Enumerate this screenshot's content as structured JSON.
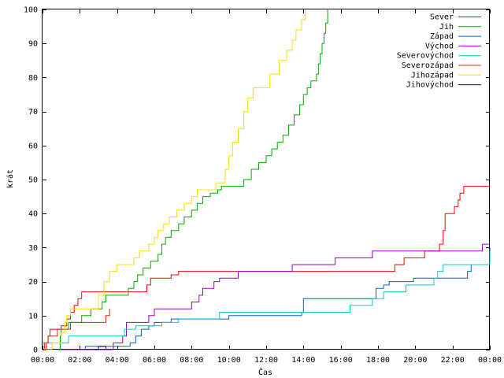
{
  "chart_data": {
    "type": "line",
    "xlabel": "Čas",
    "ylabel": "krát",
    "xlim": [
      0,
      24
    ],
    "ylim": [
      0,
      100
    ],
    "xticks": [
      {
        "v": 0,
        "label": "00:00"
      },
      {
        "v": 2,
        "label": "02:00"
      },
      {
        "v": 4,
        "label": "04:00"
      },
      {
        "v": 6,
        "label": "06:00"
      },
      {
        "v": 8,
        "label": "08:00"
      },
      {
        "v": 10,
        "label": "10:00"
      },
      {
        "v": 12,
        "label": "12:00"
      },
      {
        "v": 14,
        "label": "14:00"
      },
      {
        "v": 16,
        "label": "16:00"
      },
      {
        "v": 18,
        "label": "18:00"
      },
      {
        "v": 20,
        "label": "20:00"
      },
      {
        "v": 22,
        "label": "22:00"
      },
      {
        "v": 24,
        "label": "00:00"
      }
    ],
    "yticks": [
      0,
      10,
      20,
      30,
      40,
      50,
      60,
      70,
      80,
      90,
      100
    ],
    "grid": false,
    "legend_position": "top-right",
    "series": [
      {
        "name": "Sever",
        "color": "#ff0000",
        "points": [
          [
            0.05,
            0
          ],
          [
            0.2,
            2
          ],
          [
            0.3,
            4
          ],
          [
            0.4,
            6
          ],
          [
            0.9,
            6
          ],
          [
            1.0,
            7
          ],
          [
            1.3,
            9
          ],
          [
            1.5,
            11
          ],
          [
            1.7,
            13
          ],
          [
            1.9,
            15
          ],
          [
            2.1,
            17
          ],
          [
            2.6,
            17
          ],
          [
            3.2,
            17
          ],
          [
            5.5,
            17
          ],
          [
            5.6,
            19
          ],
          [
            5.8,
            21
          ],
          [
            6.8,
            21
          ],
          [
            6.9,
            22
          ],
          [
            7.3,
            23
          ],
          [
            12.0,
            23
          ],
          [
            18.8,
            23
          ],
          [
            18.9,
            25
          ],
          [
            19.3,
            25
          ],
          [
            19.4,
            27
          ],
          [
            20.4,
            27
          ],
          [
            20.5,
            29
          ],
          [
            21.2,
            29
          ],
          [
            21.3,
            31
          ],
          [
            21.5,
            35
          ],
          [
            21.6,
            40
          ],
          [
            22.0,
            40
          ],
          [
            22.1,
            42
          ],
          [
            22.3,
            44
          ],
          [
            22.4,
            46
          ],
          [
            22.6,
            48
          ],
          [
            24,
            48
          ]
        ]
      },
      {
        "name": "Jih",
        "color": "#00aa00",
        "points": [
          [
            0.85,
            0
          ],
          [
            0.95,
            4
          ],
          [
            1.0,
            6
          ],
          [
            1.4,
            8
          ],
          [
            2.0,
            8
          ],
          [
            2.1,
            10
          ],
          [
            2.6,
            12
          ],
          [
            3.2,
            14
          ],
          [
            3.4,
            16
          ],
          [
            4.5,
            16
          ],
          [
            4.6,
            18
          ],
          [
            4.9,
            20
          ],
          [
            5.1,
            22
          ],
          [
            5.4,
            24
          ],
          [
            5.8,
            26
          ],
          [
            6.2,
            28
          ],
          [
            6.4,
            31
          ],
          [
            6.6,
            33
          ],
          [
            6.9,
            35
          ],
          [
            7.3,
            37
          ],
          [
            7.6,
            39
          ],
          [
            8.0,
            41
          ],
          [
            8.3,
            43
          ],
          [
            8.6,
            45
          ],
          [
            9.0,
            46
          ],
          [
            9.4,
            47
          ],
          [
            9.6,
            48
          ],
          [
            10.6,
            48
          ],
          [
            10.8,
            50
          ],
          [
            11.2,
            53
          ],
          [
            11.6,
            55
          ],
          [
            12.0,
            57
          ],
          [
            12.3,
            59
          ],
          [
            12.6,
            61
          ],
          [
            12.9,
            63
          ],
          [
            13.2,
            66
          ],
          [
            13.5,
            69
          ],
          [
            13.8,
            72
          ],
          [
            14.0,
            75
          ],
          [
            14.2,
            77
          ],
          [
            14.4,
            79
          ],
          [
            14.7,
            81
          ],
          [
            14.8,
            84
          ],
          [
            14.9,
            87
          ],
          [
            15.0,
            90
          ],
          [
            15.1,
            93
          ],
          [
            15.2,
            96
          ],
          [
            15.3,
            100
          ]
        ]
      },
      {
        "name": "Západ",
        "color": "#0066cc",
        "points": [
          [
            2.2,
            0
          ],
          [
            2.3,
            1
          ],
          [
            4.7,
            2
          ],
          [
            5.0,
            4
          ],
          [
            5.3,
            6
          ],
          [
            5.6,
            6
          ],
          [
            5.7,
            7
          ],
          [
            6.0,
            8
          ],
          [
            6.5,
            8
          ],
          [
            6.9,
            9
          ],
          [
            7.6,
            9
          ],
          [
            10.0,
            10
          ],
          [
            11.2,
            10
          ],
          [
            11.4,
            10
          ],
          [
            13.9,
            11
          ],
          [
            14.0,
            15
          ],
          [
            17.6,
            15
          ],
          [
            17.9,
            18
          ],
          [
            18.2,
            18
          ],
          [
            18.3,
            19
          ],
          [
            18.6,
            20
          ],
          [
            19.1,
            20
          ],
          [
            19.9,
            21
          ],
          [
            22.6,
            21
          ],
          [
            22.8,
            23
          ],
          [
            23.0,
            25
          ],
          [
            23.8,
            25
          ],
          [
            24,
            30
          ]
        ]
      },
      {
        "name": "Východ",
        "color": "#9900cc",
        "points": [
          [
            1.0,
            0
          ],
          [
            3.8,
            2
          ],
          [
            4.3,
            4
          ],
          [
            4.5,
            6
          ],
          [
            4.5,
            8
          ],
          [
            5.4,
            8
          ],
          [
            5.7,
            10
          ],
          [
            6.0,
            12
          ],
          [
            7.7,
            12
          ],
          [
            8.0,
            14
          ],
          [
            8.4,
            16
          ],
          [
            8.6,
            18
          ],
          [
            9.2,
            20
          ],
          [
            9.5,
            21
          ],
          [
            10.3,
            21
          ],
          [
            10.5,
            23
          ],
          [
            13.2,
            23
          ],
          [
            13.4,
            25
          ],
          [
            15.5,
            25
          ],
          [
            15.7,
            27
          ],
          [
            16.3,
            27
          ],
          [
            17.6,
            27
          ],
          [
            17.7,
            29
          ],
          [
            20.0,
            29
          ],
          [
            21.5,
            29
          ],
          [
            23.3,
            29
          ],
          [
            23.6,
            31
          ],
          [
            24,
            31
          ]
        ]
      },
      {
        "name": "Severovýchod",
        "color": "#00cccc",
        "points": [
          [
            0.0,
            2
          ],
          [
            0.5,
            2
          ],
          [
            1.4,
            4
          ],
          [
            4.3,
            4
          ],
          [
            4.4,
            6
          ],
          [
            4.9,
            6
          ],
          [
            5.0,
            7
          ],
          [
            6.3,
            7
          ],
          [
            6.4,
            8
          ],
          [
            7.2,
            8
          ],
          [
            7.3,
            9
          ],
          [
            9.2,
            9
          ],
          [
            9.5,
            11
          ],
          [
            16.3,
            11
          ],
          [
            16.5,
            13
          ],
          [
            17.6,
            13
          ],
          [
            17.7,
            15
          ],
          [
            18.1,
            15
          ],
          [
            18.3,
            17
          ],
          [
            19.4,
            17
          ],
          [
            19.5,
            19
          ],
          [
            20.9,
            19
          ],
          [
            21.0,
            21
          ],
          [
            21.2,
            23
          ],
          [
            21.5,
            25
          ],
          [
            23.8,
            25
          ],
          [
            24,
            29
          ]
        ]
      },
      {
        "name": "Severozápad",
        "color": "#cc3300",
        "points": [
          [
            0,
            0
          ],
          [
            0.1,
            2
          ],
          [
            0.3,
            4
          ],
          [
            0.6,
            4
          ],
          [
            0.8,
            6
          ],
          [
            1.0,
            6
          ],
          [
            1.5,
            8
          ],
          [
            2.0,
            8
          ],
          [
            2.8,
            8
          ],
          [
            3.4,
            10
          ],
          [
            3.6,
            12
          ]
        ]
      },
      {
        "name": "Jihozápad",
        "color": "#ffdd00",
        "points": [
          [
            0.05,
            0
          ],
          [
            0.5,
            2
          ],
          [
            0.9,
            2
          ],
          [
            1.0,
            5
          ],
          [
            1.2,
            8
          ],
          [
            1.3,
            10
          ],
          [
            1.5,
            12
          ],
          [
            2.6,
            12
          ],
          [
            3.0,
            16
          ],
          [
            3.3,
            20
          ],
          [
            3.6,
            23
          ],
          [
            4.0,
            25
          ],
          [
            4.6,
            25
          ],
          [
            4.9,
            27
          ],
          [
            5.2,
            29
          ],
          [
            5.7,
            31
          ],
          [
            6.0,
            33
          ],
          [
            6.2,
            35
          ],
          [
            6.5,
            37
          ],
          [
            6.8,
            39
          ],
          [
            7.2,
            41
          ],
          [
            7.6,
            43
          ],
          [
            8.0,
            45
          ],
          [
            8.3,
            47
          ],
          [
            9.0,
            47
          ],
          [
            9.3,
            49
          ],
          [
            9.8,
            53
          ],
          [
            10.0,
            57
          ],
          [
            10.2,
            61
          ],
          [
            10.5,
            65
          ],
          [
            10.8,
            70
          ],
          [
            11.0,
            74
          ],
          [
            11.3,
            77
          ],
          [
            11.8,
            77
          ],
          [
            12.2,
            81
          ],
          [
            12.7,
            85
          ],
          [
            13.1,
            88
          ],
          [
            13.4,
            91
          ],
          [
            13.6,
            94
          ],
          [
            13.9,
            97
          ],
          [
            14.1,
            100
          ]
        ]
      },
      {
        "name": "Jihovýchod",
        "color": "#000099",
        "points": [
          [
            2.8,
            0
          ],
          [
            3.0,
            1
          ],
          [
            3.2,
            1
          ],
          [
            3.4,
            0
          ]
        ]
      }
    ]
  }
}
